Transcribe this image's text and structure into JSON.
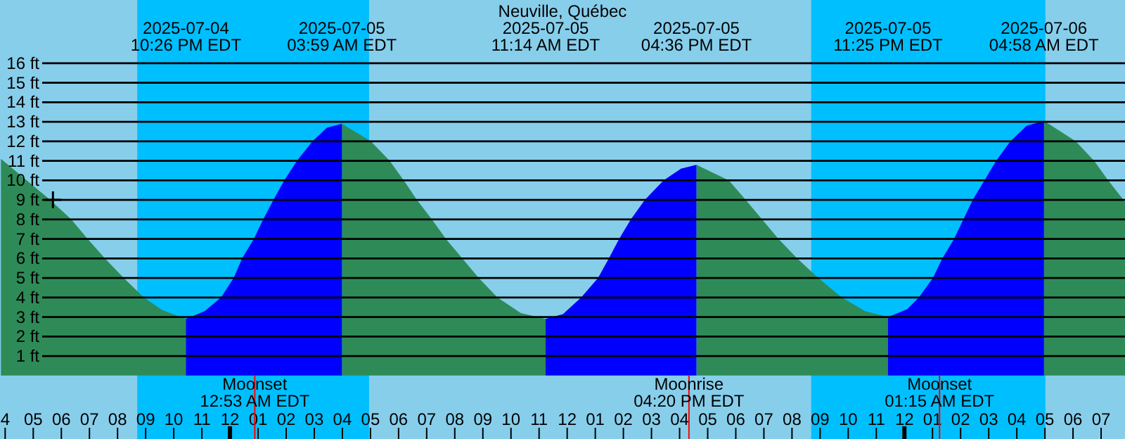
{
  "chart_data": {
    "type": "area",
    "title": "Neuville, Québec",
    "xlim": [
      "2025-07-04T15:49",
      "2025-07-06T07:51"
    ],
    "ylim": [
      -3.25,
      19.24
    ],
    "xticks": [
      {
        "value": "2025-07-04T16:00",
        "label": "4"
      },
      {
        "value": "2025-07-04T17:00",
        "label": "05"
      },
      {
        "value": "2025-07-04T18:00",
        "label": "06"
      },
      {
        "value": "2025-07-04T19:00",
        "label": "07"
      },
      {
        "value": "2025-07-04T20:00",
        "label": "08"
      },
      {
        "value": "2025-07-04T21:00",
        "label": "09"
      },
      {
        "value": "2025-07-04T22:00",
        "label": "10"
      },
      {
        "value": "2025-07-04T23:00",
        "label": "11"
      },
      {
        "value": "2025-07-05T00:00",
        "label": "12"
      },
      {
        "value": "2025-07-05T01:00",
        "label": "01"
      },
      {
        "value": "2025-07-05T02:00",
        "label": "02"
      },
      {
        "value": "2025-07-05T03:00",
        "label": "03"
      },
      {
        "value": "2025-07-05T04:00",
        "label": "04"
      },
      {
        "value": "2025-07-05T05:00",
        "label": "05"
      },
      {
        "value": "2025-07-05T06:00",
        "label": "06"
      },
      {
        "value": "2025-07-05T07:00",
        "label": "07"
      },
      {
        "value": "2025-07-05T08:00",
        "label": "08"
      },
      {
        "value": "2025-07-05T09:00",
        "label": "09"
      },
      {
        "value": "2025-07-05T10:00",
        "label": "10"
      },
      {
        "value": "2025-07-05T11:00",
        "label": "11"
      },
      {
        "value": "2025-07-05T12:00",
        "label": "12"
      },
      {
        "value": "2025-07-05T13:00",
        "label": "01"
      },
      {
        "value": "2025-07-05T14:00",
        "label": "02"
      },
      {
        "value": "2025-07-05T15:00",
        "label": "03"
      },
      {
        "value": "2025-07-05T16:00",
        "label": "04"
      },
      {
        "value": "2025-07-05T17:00",
        "label": "05"
      },
      {
        "value": "2025-07-05T18:00",
        "label": "06"
      },
      {
        "value": "2025-07-05T19:00",
        "label": "07"
      },
      {
        "value": "2025-07-05T20:00",
        "label": "08"
      },
      {
        "value": "2025-07-05T21:00",
        "label": "09"
      },
      {
        "value": "2025-07-05T22:00",
        "label": "10"
      },
      {
        "value": "2025-07-05T23:00",
        "label": "11"
      },
      {
        "value": "2025-07-06T00:00",
        "label": "12"
      },
      {
        "value": "2025-07-06T01:00",
        "label": "01"
      },
      {
        "value": "2025-07-06T02:00",
        "label": "02"
      },
      {
        "value": "2025-07-06T03:00",
        "label": "03"
      },
      {
        "value": "2025-07-06T04:00",
        "label": "04"
      },
      {
        "value": "2025-07-06T05:00",
        "label": "05"
      },
      {
        "value": "2025-07-06T06:00",
        "label": "06"
      },
      {
        "value": "2025-07-06T07:00",
        "label": "07"
      }
    ],
    "yticks": [
      {
        "value": 1,
        "label": "1 ft"
      },
      {
        "value": 2,
        "label": "2 ft"
      },
      {
        "value": 3,
        "label": "3 ft"
      },
      {
        "value": 4,
        "label": "4 ft"
      },
      {
        "value": 5,
        "label": "5 ft"
      },
      {
        "value": 6,
        "label": "6 ft"
      },
      {
        "value": 7,
        "label": "7 ft"
      },
      {
        "value": 8,
        "label": "8 ft"
      },
      {
        "value": 9,
        "label": "9 ft"
      },
      {
        "value": 10,
        "label": "10 ft"
      },
      {
        "value": 11,
        "label": "11 ft"
      },
      {
        "value": 12,
        "label": "12 ft"
      },
      {
        "value": 13,
        "label": "13 ft"
      },
      {
        "value": 14,
        "label": "14 ft"
      },
      {
        "value": 15,
        "label": "15 ft"
      },
      {
        "value": 16,
        "label": "16 ft"
      }
    ],
    "grid": "y",
    "bands": [
      {
        "axis": "x",
        "from": "2025-07-04T20:42",
        "to": "2025-07-05T04:57",
        "color": "#00bfff"
      },
      {
        "axis": "x",
        "from": "2025-07-05T20:41",
        "to": "2025-07-06T05:01",
        "color": "#00bfff"
      }
    ],
    "ref_lines": [
      {
        "axis": "x",
        "value": "2025-07-05T00:53",
        "label": "Moonset\n12:53 AM EDT",
        "color": "#ff0000"
      },
      {
        "axis": "x",
        "value": "2025-07-05T16:20",
        "label": "Moonrise\n04:20 PM EDT",
        "color": "#ff0000"
      },
      {
        "axis": "x",
        "value": "2025-07-06T01:15",
        "label": "Moonset\n01:15 AM EDT",
        "color": "#ff0000"
      }
    ],
    "x": [
      "2025-07-04T15:51",
      "2025-07-04T17:36",
      "2025-07-04T18:21",
      "2025-07-04T18:56",
      "2025-07-04T19:33",
      "2025-07-04T20:13",
      "2025-07-04T20:56",
      "2025-07-04T21:36",
      "2025-07-04T22:26",
      "2025-07-04T23:06",
      "2025-07-04T23:41",
      "2025-07-05T00:08",
      "2025-07-05T00:26",
      "2025-07-05T00:51",
      "2025-07-05T01:11",
      "2025-07-05T01:33",
      "2025-07-05T01:56",
      "2025-07-05T02:23",
      "2025-07-05T02:56",
      "2025-07-05T03:27",
      "2025-07-05T03:59",
      "2025-07-05T05:01",
      "2025-07-05T05:41",
      "2025-07-05T06:11",
      "2025-07-05T06:39",
      "2025-07-05T07:11",
      "2025-07-05T07:41",
      "2025-07-05T08:16",
      "2025-07-05T08:51",
      "2025-07-05T09:31",
      "2025-07-05T10:21",
      "2025-07-05T11:14",
      "2025-07-05T11:51",
      "2025-07-05T12:30",
      "2025-07-05T13:06",
      "2025-07-05T13:29",
      "2025-07-05T13:51",
      "2025-07-05T14:16",
      "2025-07-05T14:46",
      "2025-07-05T15:26",
      "2025-07-05T16:03",
      "2025-07-05T16:36",
      "2025-07-05T17:45",
      "2025-07-05T18:21",
      "2025-07-05T18:56",
      "2025-07-05T19:31",
      "2025-07-05T20:11",
      "2025-07-05T20:56",
      "2025-07-05T21:46",
      "2025-07-05T22:36",
      "2025-07-05T23:25",
      "2025-07-06T00:06",
      "2025-07-06T00:31",
      "2025-07-06T01:01",
      "2025-07-06T01:21",
      "2025-07-06T01:46",
      "2025-07-06T02:06",
      "2025-07-06T02:26",
      "2025-07-06T02:51",
      "2025-07-06T03:16",
      "2025-07-06T03:46",
      "2025-07-06T04:21",
      "2025-07-06T04:58",
      "2025-07-06T06:06",
      "2025-07-06T06:45",
      "2025-07-06T07:15",
      "2025-07-06T07:51"
    ],
    "series": [
      {
        "color": "#2e8b57",
        "values": [
          11.1,
          9,
          8,
          7,
          6,
          5,
          4,
          3.35,
          2.9,
          null,
          null,
          null,
          null,
          null,
          null,
          null,
          null,
          null,
          null,
          null,
          12.9,
          12,
          11,
          10,
          9,
          8,
          7,
          6,
          5,
          4,
          3.2,
          2.9,
          null,
          null,
          null,
          null,
          null,
          null,
          null,
          null,
          null,
          10.8,
          10,
          9,
          8,
          7,
          6,
          5,
          4,
          3.3,
          3.0,
          null,
          null,
          null,
          null,
          null,
          null,
          null,
          null,
          null,
          null,
          null,
          13.05,
          12,
          11,
          10,
          8.9
        ]
      },
      {
        "color": "#0000ff",
        "values": [
          null,
          null,
          null,
          null,
          null,
          null,
          null,
          null,
          2.9,
          3.3,
          4,
          5,
          6,
          7,
          8,
          9,
          10,
          11,
          12,
          12.7,
          12.9,
          null,
          null,
          null,
          null,
          null,
          null,
          null,
          null,
          null,
          null,
          2.9,
          3.15,
          4,
          5,
          6,
          7,
          8,
          9,
          10,
          10.6,
          10.8,
          null,
          null,
          null,
          null,
          null,
          null,
          null,
          null,
          3.0,
          3.4,
          4,
          5,
          6,
          7,
          8,
          9,
          10,
          11,
          12,
          12.8,
          13.05,
          null,
          null,
          null,
          null
        ]
      },
      {
        "type": "scatter",
        "color": "#000000",
        "marker": "cross",
        "x": [
          "2025-07-04T17:42"
        ],
        "values": [
          9
        ]
      }
    ],
    "annotations": [
      "2025-07-04\n10:26 PM EDT",
      "2025-07-05\n03:59 AM EDT",
      "2025-07-05\n11:14 AM EDT",
      "2025-07-05\n04:36 PM EDT",
      "2025-07-05\n11:25 PM EDT",
      "2025-07-06\n04:58 AM EDT"
    ]
  }
}
